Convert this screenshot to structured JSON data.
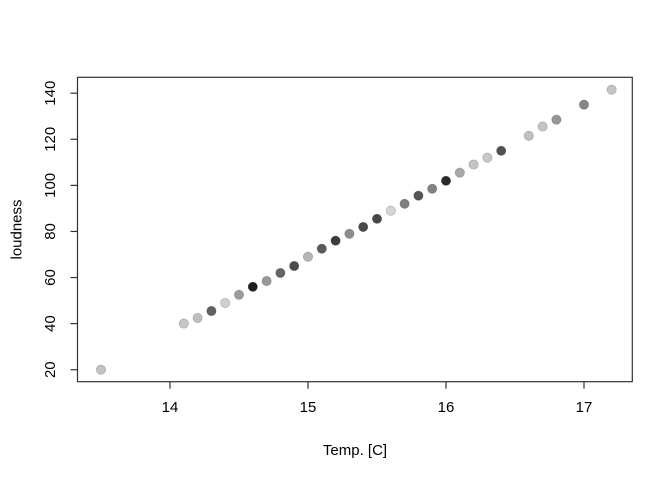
{
  "figure": {
    "background": "#ffffff",
    "frame_color": "#333333",
    "tick_color": "#333333",
    "text_color": "#000000"
  },
  "chart_data": {
    "type": "scatter",
    "title": "",
    "xlabel": "Temp. [C]",
    "ylabel": "loudness",
    "xlim": [
      13.33,
      17.35
    ],
    "ylim": [
      14.8,
      146.9
    ],
    "x_ticks": [
      "14",
      "15",
      "16",
      "17"
    ],
    "x_tick_values": [
      14,
      15,
      16,
      17
    ],
    "y_ticks": [
      "20",
      "40",
      "60",
      "80",
      "100",
      "120",
      "140"
    ],
    "y_tick_values": [
      20,
      40,
      60,
      80,
      100,
      120,
      140
    ],
    "grid": false,
    "legend": false,
    "marker": "filled-circle",
    "marker_radius": 4.7,
    "points": [
      {
        "x": 13.5,
        "y": 20,
        "color": "#c2c2c2"
      },
      {
        "x": 14.1,
        "y": 40,
        "color": "#c6c6c6"
      },
      {
        "x": 14.2,
        "y": 42.5,
        "color": "#bebebe"
      },
      {
        "x": 14.3,
        "y": 45.5,
        "color": "#606060"
      },
      {
        "x": 14.4,
        "y": 49,
        "color": "#d0d0d0"
      },
      {
        "x": 14.5,
        "y": 52.5,
        "color": "#9c9c9c"
      },
      {
        "x": 14.6,
        "y": 56,
        "color": "#1e1e1e"
      },
      {
        "x": 14.7,
        "y": 58.5,
        "color": "#999999"
      },
      {
        "x": 14.8,
        "y": 62,
        "color": "#646464"
      },
      {
        "x": 14.9,
        "y": 65,
        "color": "#4c4c4c"
      },
      {
        "x": 15.0,
        "y": 69,
        "color": "#b6b6b6"
      },
      {
        "x": 15.1,
        "y": 72.5,
        "color": "#5a5a5a"
      },
      {
        "x": 15.2,
        "y": 76,
        "color": "#3c3c3c"
      },
      {
        "x": 15.3,
        "y": 79,
        "color": "#8c8c8c"
      },
      {
        "x": 15.4,
        "y": 82,
        "color": "#4a4a4a"
      },
      {
        "x": 15.5,
        "y": 85.5,
        "color": "#484848"
      },
      {
        "x": 15.6,
        "y": 89,
        "color": "#d4d4d4"
      },
      {
        "x": 15.7,
        "y": 92,
        "color": "#808080"
      },
      {
        "x": 15.8,
        "y": 95.5,
        "color": "#565656"
      },
      {
        "x": 15.9,
        "y": 98.5,
        "color": "#828282"
      },
      {
        "x": 16.0,
        "y": 102,
        "color": "#2a2a2a"
      },
      {
        "x": 16.1,
        "y": 105.5,
        "color": "#a8a8a8"
      },
      {
        "x": 16.2,
        "y": 109,
        "color": "#c4c4c4"
      },
      {
        "x": 16.3,
        "y": 112,
        "color": "#c8c8c8"
      },
      {
        "x": 16.4,
        "y": 115,
        "color": "#525252"
      },
      {
        "x": 16.6,
        "y": 121.5,
        "color": "#c0c0c0"
      },
      {
        "x": 16.7,
        "y": 125.5,
        "color": "#c4c4c4"
      },
      {
        "x": 16.8,
        "y": 128.5,
        "color": "#969696"
      },
      {
        "x": 17.0,
        "y": 135,
        "color": "#868686"
      },
      {
        "x": 17.2,
        "y": 141.5,
        "color": "#c4c4c4"
      }
    ]
  }
}
